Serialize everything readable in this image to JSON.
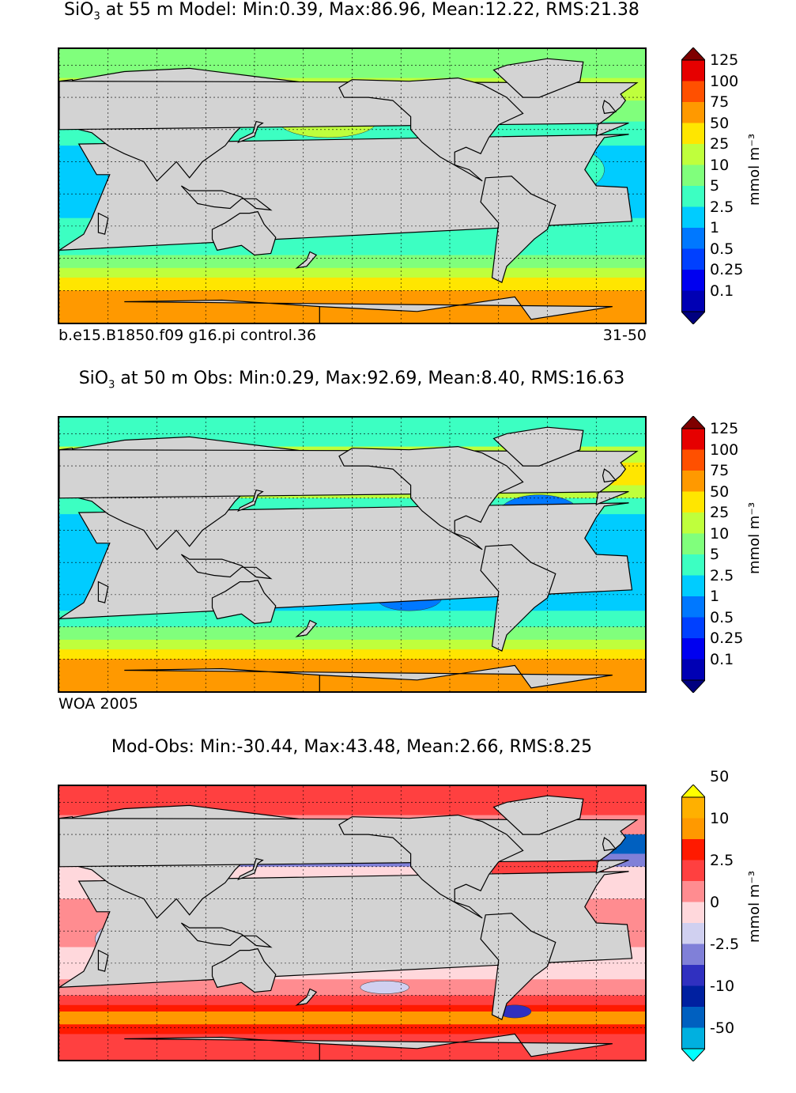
{
  "panels": [
    {
      "id": "model",
      "title_prefix": "SiO",
      "title_sub": "3",
      "title_rest": " at 55 m Model: Min:0.39, Max:86.96, Mean:12.22, RMS:21.38",
      "label_left": "b.e15.B1850.f09 g16.pi control.36",
      "label_right": "31-50",
      "unit": "mmol m⁻³",
      "colorbar": {
        "colors": [
          "#00007f",
          "#0000b4",
          "#0000f0",
          "#0040ff",
          "#0078ff",
          "#00ccff",
          "#3cffc2",
          "#80ff7c",
          "#bfff3c",
          "#ffe600",
          "#ff9900",
          "#ff5000",
          "#e60000",
          "#7f0000"
        ],
        "tick_labels": [
          "0.1",
          "0.25",
          "0.5",
          "1",
          "2.5",
          "5",
          "10",
          "25",
          "50",
          "75",
          "100",
          "125"
        ]
      }
    },
    {
      "id": "obs",
      "title_prefix": "SiO",
      "title_sub": "3",
      "title_rest": " at 50 m Obs: Min:0.29, Max:92.69, Mean:8.40, RMS:16.63",
      "label_left": "WOA 2005",
      "label_right": "",
      "unit": "mmol m⁻³",
      "colorbar": {
        "colors": [
          "#00007f",
          "#0000b4",
          "#0000f0",
          "#0040ff",
          "#0078ff",
          "#00ccff",
          "#3cffc2",
          "#80ff7c",
          "#bfff3c",
          "#ffe600",
          "#ff9900",
          "#ff5000",
          "#e60000",
          "#7f0000"
        ],
        "tick_labels": [
          "0.1",
          "0.25",
          "0.5",
          "1",
          "2.5",
          "5",
          "10",
          "25",
          "50",
          "75",
          "100",
          "125"
        ]
      }
    },
    {
      "id": "diff",
      "title_prefix": "",
      "title_sub": "",
      "title_rest": "Mod-Obs: Min:-30.44, Max:43.48, Mean:2.66, RMS:8.25",
      "label_left": "",
      "label_right": "",
      "unit": "mmol m⁻³",
      "colorbar": {
        "colors": [
          "#00ffff",
          "#00b0e0",
          "#0060c0",
          "#0020a0",
          "#3030c0",
          "#8080d8",
          "#d0d0f0",
          "#ffd8dc",
          "#ff8c90",
          "#ff4040",
          "#ff1a00",
          "#ff9900",
          "#ffb000",
          "#ffff00"
        ],
        "tick_labels": [
          "-50",
          "-10",
          "-2.5",
          "0",
          "2.5",
          "10",
          "50"
        ]
      }
    }
  ],
  "land_color": "#d3d3d3"
}
